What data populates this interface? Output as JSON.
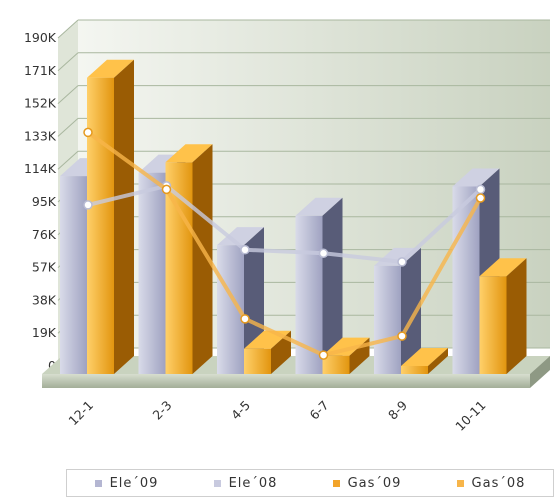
{
  "chart_data": {
    "type": "bar",
    "categories": [
      "12-1",
      "2-3",
      "4-5",
      "6-7",
      "8-9",
      "10-11"
    ],
    "yticks": [
      "0",
      "19K",
      "38K",
      "57K",
      "76K",
      "95K",
      "114K",
      "133K",
      "152K",
      "171K",
      "190K"
    ],
    "ylim": [
      0,
      190000
    ],
    "series": [
      {
        "name": "Ele´09",
        "kind": "bar",
        "values": [
          110000,
          112000,
          70000,
          87000,
          58000,
          104000
        ],
        "color": "#b4b6d2"
      },
      {
        "name": "Ele´08",
        "kind": "line",
        "values": [
          91000,
          102000,
          65000,
          63000,
          58000,
          100000
        ],
        "color": "#c8cadf"
      },
      {
        "name": "Gas´09",
        "kind": "bar",
        "values": [
          167000,
          118000,
          10000,
          6000,
          0,
          52000
        ],
        "color": "#f2a42a"
      },
      {
        "name": "Gas´08",
        "kind": "line",
        "values": [
          133000,
          100000,
          25000,
          4000,
          15000,
          95000
        ],
        "color": "#f7b54a"
      }
    ],
    "grid": true,
    "legend_position": "bottom"
  }
}
